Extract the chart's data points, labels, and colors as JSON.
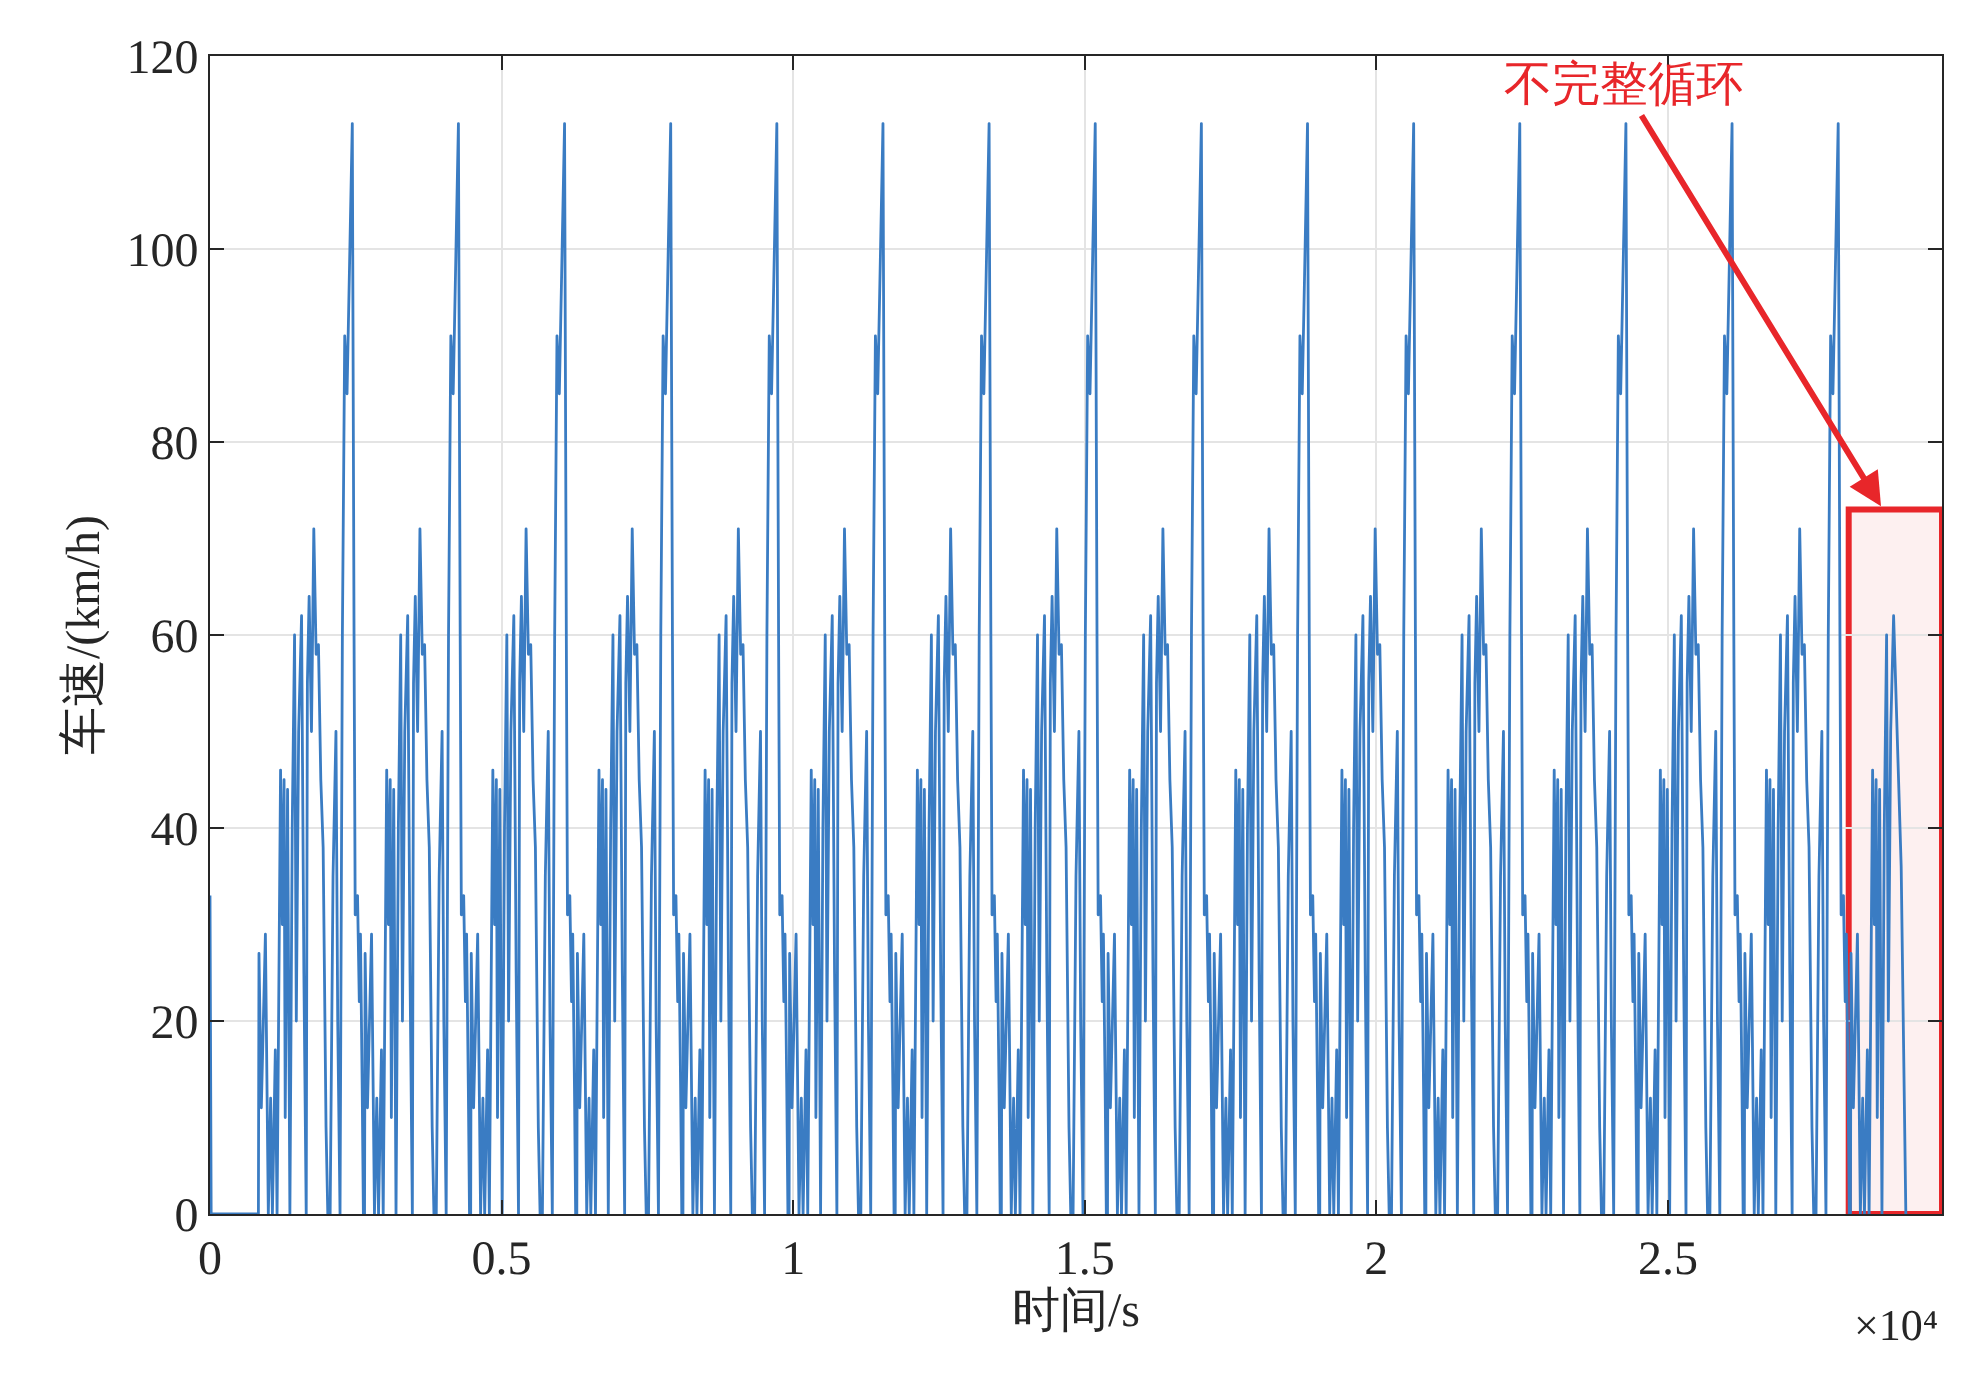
{
  "chart_data": {
    "type": "line",
    "xlabel": "时间/s",
    "ylabel": "车速/(km/h)",
    "xlim": [
      0,
      2.97
    ],
    "ylim": [
      0,
      120
    ],
    "xticks": [
      0,
      0.5,
      1,
      1.5,
      2,
      2.5
    ],
    "yticks": [
      0,
      20,
      40,
      60,
      80,
      100,
      120
    ],
    "grid": true,
    "annotations": [
      "×10⁴",
      {
        "text": "不完整循环",
        "x": 2.869,
        "y": 73
      }
    ],
    "bands": [
      {
        "axis": "x",
        "from": 2.81,
        "to": 2.97,
        "color": "#e8262a"
      }
    ],
    "x": [
      0,
      0.002,
      0.083,
      0.084,
      0.088,
      0.095,
      0.1,
      0.104,
      0.107,
      0.112,
      0.115,
      0.121,
      0.124,
      0.127,
      0.129,
      0.133,
      0.137,
      0.141,
      0.145,
      0.148,
      0.152,
      0.157,
      0.161,
      0.165,
      0.167,
      0.17,
      0.174,
      0.178,
      0.182,
      0.186,
      0.19,
      0.194,
      0.199,
      0.202,
      0.206,
      0.211,
      0.216,
      0.219,
      0.223,
      0.227,
      0.231,
      0.235,
      0.244,
      0.247,
      0.249,
      0.253,
      0.256,
      0.258,
      0.261,
      0.263,
      0.265,
      0.266,
      0.27,
      0.277,
      0.282,
      0.286,
      0.289,
      0.294,
      0.297,
      0.303,
      0.306,
      0.309,
      0.311,
      0.315,
      0.319,
      0.323,
      0.327,
      0.33,
      0.334,
      0.339,
      0.343,
      0.347,
      0.349,
      0.352,
      0.356,
      0.36,
      0.364,
      0.368,
      0.372,
      0.376,
      0.381,
      0.384,
      0.388,
      0.393,
      0.398,
      0.401,
      0.405,
      0.409,
      0.413,
      0.417,
      0.426,
      0.429,
      0.431,
      0.435,
      0.438,
      0.44,
      0.443,
      0.445,
      0.447,
      0.448,
      0.452,
      0.459,
      0.464,
      0.468,
      0.471,
      0.476,
      0.479,
      0.485,
      0.488,
      0.491,
      0.493,
      0.497,
      0.501,
      0.505,
      0.509,
      0.512,
      0.516,
      0.521,
      0.525,
      0.529,
      0.531,
      0.534,
      0.538,
      0.542,
      0.546,
      0.55,
      0.554,
      0.558,
      0.563,
      0.566,
      0.57,
      0.575,
      0.58,
      0.583,
      0.587,
      0.591,
      0.595,
      0.599,
      0.608,
      0.611,
      0.613,
      0.617,
      0.62,
      0.622,
      0.625,
      0.627,
      0.629,
      0.63,
      0.634,
      0.641,
      0.646,
      0.65,
      0.653,
      0.658,
      0.661,
      0.667,
      0.67,
      0.673,
      0.675,
      0.679,
      0.683,
      0.687,
      0.691,
      0.694,
      0.698,
      0.703,
      0.707,
      0.711,
      0.713,
      0.716,
      0.72,
      0.724,
      0.728,
      0.732,
      0.736,
      0.74,
      0.745,
      0.748,
      0.752,
      0.757,
      0.762,
      0.765,
      0.769,
      0.773,
      0.777,
      0.781,
      0.79,
      0.793,
      0.795,
      0.799,
      0.802,
      0.804,
      0.807,
      0.809,
      0.811,
      0.812,
      0.816,
      0.823,
      0.828,
      0.832,
      0.835,
      0.84,
      0.843,
      0.849,
      0.852,
      0.855,
      0.857,
      0.861,
      0.865,
      0.869,
      0.873,
      0.876,
      0.88,
      0.885,
      0.889,
      0.893,
      0.895,
      0.898,
      0.902,
      0.906,
      0.91,
      0.914,
      0.918,
      0.922,
      0.927,
      0.93,
      0.934,
      0.939,
      0.944,
      0.947,
      0.951,
      0.955,
      0.959,
      0.963,
      0.972,
      0.975,
      0.977,
      0.981,
      0.984,
      0.986,
      0.989,
      0.991,
      0.993,
      0.994,
      0.998,
      1.005,
      1.01,
      1.014,
      1.017,
      1.022,
      1.025,
      1.031,
      1.034,
      1.037,
      1.039,
      1.043,
      1.047,
      1.051,
      1.055,
      1.058,
      1.062,
      1.067,
      1.071,
      1.075,
      1.077,
      1.08,
      1.084,
      1.088,
      1.092,
      1.096,
      1.1,
      1.104,
      1.109,
      1.112,
      1.116,
      1.121,
      1.126,
      1.129,
      1.133,
      1.137,
      1.141,
      1.145,
      1.154,
      1.157,
      1.159,
      1.163,
      1.166,
      1.168,
      1.171,
      1.173,
      1.175,
      1.176,
      1.18,
      1.187,
      1.192,
      1.196,
      1.199,
      1.204,
      1.207,
      1.213,
      1.216,
      1.219,
      1.221,
      1.225,
      1.229,
      1.233,
      1.237,
      1.24,
      1.244,
      1.249,
      1.253,
      1.257,
      1.259,
      1.262,
      1.266,
      1.27,
      1.274,
      1.278,
      1.282,
      1.286,
      1.291,
      1.294,
      1.298,
      1.303,
      1.308,
      1.311,
      1.315,
      1.319,
      1.323,
      1.327,
      1.336,
      1.339,
      1.341,
      1.345,
      1.348,
      1.35,
      1.353,
      1.355,
      1.357,
      1.358,
      1.362,
      1.369,
      1.374,
      1.378,
      1.381,
      1.386,
      1.389,
      1.395,
      1.398,
      1.401,
      1.403,
      1.407,
      1.411,
      1.415,
      1.419,
      1.422,
      1.426,
      1.431,
      1.435,
      1.439,
      1.441,
      1.444,
      1.448,
      1.452,
      1.456,
      1.46,
      1.464,
      1.468,
      1.473,
      1.476,
      1.48,
      1.485,
      1.49,
      1.493,
      1.497,
      1.501,
      1.505,
      1.509,
      1.518,
      1.521,
      1.523,
      1.527,
      1.53,
      1.532,
      1.535,
      1.537,
      1.539,
      1.54,
      1.544,
      1.551,
      1.556,
      1.56,
      1.563,
      1.568,
      1.571,
      1.577,
      1.58,
      1.583,
      1.585,
      1.589,
      1.593,
      1.597,
      1.601,
      1.604,
      1.608,
      1.613,
      1.617,
      1.621,
      1.623,
      1.626,
      1.63,
      1.634,
      1.638,
      1.642,
      1.646,
      1.65,
      1.655,
      1.658,
      1.662,
      1.667,
      1.672,
      1.675,
      1.679,
      1.683,
      1.687,
      1.691,
      1.7,
      1.703,
      1.705,
      1.709,
      1.712,
      1.714,
      1.717,
      1.719,
      1.721,
      1.722,
      1.726,
      1.733,
      1.738,
      1.742,
      1.745,
      1.75,
      1.753,
      1.759,
      1.762,
      1.765,
      1.767,
      1.771,
      1.775,
      1.779,
      1.783,
      1.786,
      1.79,
      1.795,
      1.799,
      1.803,
      1.805,
      1.808,
      1.812,
      1.816,
      1.82,
      1.824,
      1.828,
      1.832,
      1.837,
      1.84,
      1.844,
      1.849,
      1.854,
      1.857,
      1.861,
      1.865,
      1.869,
      1.873,
      1.882,
      1.885,
      1.887,
      1.891,
      1.894,
      1.896,
      1.899,
      1.901,
      1.903,
      1.904,
      1.908,
      1.915,
      1.92,
      1.924,
      1.927,
      1.932,
      1.935,
      1.941,
      1.944,
      1.947,
      1.949,
      1.953,
      1.957,
      1.961,
      1.965,
      1.968,
      1.972,
      1.977,
      1.981,
      1.985,
      1.987,
      1.99,
      1.994,
      1.998,
      2.002,
      2.006,
      2.01,
      2.014,
      2.019,
      2.022,
      2.026,
      2.031,
      2.036,
      2.039,
      2.043,
      2.047,
      2.051,
      2.055,
      2.064,
      2.067,
      2.069,
      2.073,
      2.076,
      2.078,
      2.081,
      2.083,
      2.085,
      2.086,
      2.09,
      2.097,
      2.102,
      2.106,
      2.109,
      2.114,
      2.117,
      2.123,
      2.126,
      2.129,
      2.131,
      2.135,
      2.139,
      2.143,
      2.147,
      2.15,
      2.154,
      2.159,
      2.163,
      2.167,
      2.169,
      2.172,
      2.176,
      2.18,
      2.184,
      2.188,
      2.192,
      2.196,
      2.201,
      2.204,
      2.208,
      2.213,
      2.218,
      2.221,
      2.225,
      2.229,
      2.233,
      2.237,
      2.246,
      2.249,
      2.251,
      2.255,
      2.258,
      2.26,
      2.263,
      2.265,
      2.267,
      2.268,
      2.272,
      2.279,
      2.284,
      2.288,
      2.291,
      2.296,
      2.299,
      2.305,
      2.308,
      2.311,
      2.313,
      2.317,
      2.321,
      2.325,
      2.329,
      2.332,
      2.336,
      2.341,
      2.345,
      2.349,
      2.351,
      2.354,
      2.358,
      2.362,
      2.366,
      2.37,
      2.374,
      2.378,
      2.383,
      2.386,
      2.39,
      2.395,
      2.4,
      2.403,
      2.407,
      2.411,
      2.415,
      2.419,
      2.428,
      2.431,
      2.433,
      2.437,
      2.44,
      2.442,
      2.445,
      2.447,
      2.449,
      2.45,
      2.454,
      2.461,
      2.466,
      2.47,
      2.473,
      2.478,
      2.481,
      2.487,
      2.49,
      2.493,
      2.495,
      2.499,
      2.503,
      2.507,
      2.511,
      2.514,
      2.518,
      2.523,
      2.527,
      2.531,
      2.533,
      2.536,
      2.54,
      2.544,
      2.548,
      2.552,
      2.556,
      2.56,
      2.565,
      2.568,
      2.572,
      2.577,
      2.582,
      2.585,
      2.589,
      2.593,
      2.597,
      2.601,
      2.61,
      2.613,
      2.615,
      2.619,
      2.622,
      2.624,
      2.627,
      2.629,
      2.631,
      2.632,
      2.636,
      2.643,
      2.648,
      2.652,
      2.655,
      2.66,
      2.663,
      2.669,
      2.672,
      2.675,
      2.677,
      2.681,
      2.685,
      2.689,
      2.693,
      2.696,
      2.7,
      2.705,
      2.709,
      2.713,
      2.715,
      2.718,
      2.722,
      2.726,
      2.73,
      2.734,
      2.738,
      2.742,
      2.747,
      2.75,
      2.754,
      2.759,
      2.764,
      2.767,
      2.771,
      2.775,
      2.779,
      2.783,
      2.792,
      2.795,
      2.797,
      2.801,
      2.804,
      2.806,
      2.809,
      2.811,
      2.813,
      2.814,
      2.818,
      2.825,
      2.83,
      2.834,
      2.837,
      2.842,
      2.845,
      2.851,
      2.854,
      2.857,
      2.859,
      2.863,
      2.867,
      2.871,
      2.875,
      2.878,
      2.882,
      2.887,
      2.9,
      2.908
    ],
    "series": [
      {
        "color": "#3a7cc3",
        "values": [
          33,
          0,
          0,
          27,
          11,
          29,
          0,
          12,
          0,
          17,
          0,
          46,
          30,
          45,
          10,
          44,
          0,
          40,
          60,
          20,
          50,
          62,
          25,
          0,
          55,
          64,
          50,
          71,
          58,
          59,
          45,
          38,
          9,
          0,
          0,
          35,
          50,
          20,
          0,
          60,
          91,
          85,
          113,
          60,
          31,
          33,
          22,
          29,
          13,
          0,
          0,
          27,
          11,
          29,
          0,
          12,
          0,
          17,
          0,
          46,
          30,
          45,
          10,
          44,
          0,
          40,
          60,
          20,
          50,
          62,
          25,
          0,
          55,
          64,
          50,
          71,
          58,
          59,
          45,
          38,
          9,
          0,
          0,
          35,
          50,
          20,
          0,
          60,
          91,
          85,
          113,
          60,
          31,
          33,
          22,
          29,
          13,
          0,
          0,
          27,
          11,
          29,
          0,
          12,
          0,
          17,
          0,
          46,
          30,
          45,
          10,
          44,
          0,
          40,
          60,
          20,
          50,
          62,
          25,
          0,
          55,
          64,
          50,
          71,
          58,
          59,
          45,
          38,
          9,
          0,
          0,
          35,
          50,
          20,
          0,
          60,
          91,
          85,
          113,
          60,
          31,
          33,
          22,
          29,
          13,
          0,
          0,
          27,
          11,
          29,
          0,
          12,
          0,
          17,
          0,
          46,
          30,
          45,
          10,
          44,
          0,
          40,
          60,
          20,
          50,
          62,
          25,
          0,
          55,
          64,
          50,
          71,
          58,
          59,
          45,
          38,
          9,
          0,
          0,
          35,
          50,
          20,
          0,
          60,
          91,
          85,
          113,
          60,
          31,
          33,
          22,
          29,
          13,
          0,
          0,
          27,
          11,
          29,
          0,
          12,
          0,
          17,
          0,
          46,
          30,
          45,
          10,
          44,
          0,
          40,
          60,
          20,
          50,
          62,
          25,
          0,
          55,
          64,
          50,
          71,
          58,
          59,
          45,
          38,
          9,
          0,
          0,
          35,
          50,
          20,
          0,
          60,
          91,
          85,
          113,
          60,
          31,
          33,
          22,
          29,
          13,
          0,
          0,
          27,
          11,
          29,
          0,
          12,
          0,
          17,
          0,
          46,
          30,
          45,
          10,
          44,
          0,
          40,
          60,
          20,
          50,
          62,
          25,
          0,
          55,
          64,
          50,
          71,
          58,
          59,
          45,
          38,
          9,
          0,
          0,
          35,
          50,
          20,
          0,
          60,
          91,
          85,
          113,
          60,
          31,
          33,
          22,
          29,
          13,
          0,
          0,
          27,
          11,
          29,
          0,
          12,
          0,
          17,
          0,
          46,
          30,
          45,
          10,
          44,
          0,
          40,
          60,
          20,
          50,
          62,
          25,
          0,
          55,
          64,
          50,
          71,
          58,
          59,
          45,
          38,
          9,
          0,
          0,
          35,
          50,
          20,
          0,
          60,
          91,
          85,
          113,
          60,
          31,
          33,
          22,
          29,
          13,
          0,
          0,
          27,
          11,
          29,
          0,
          12,
          0,
          17,
          0,
          46,
          30,
          45,
          10,
          44,
          0,
          40,
          60,
          20,
          50,
          62,
          25,
          0,
          55,
          64,
          50,
          71,
          58,
          59,
          45,
          38,
          9,
          0,
          0,
          35,
          50,
          20,
          0,
          60,
          91,
          85,
          113,
          60,
          31,
          33,
          22,
          29,
          13,
          0,
          0,
          27,
          11,
          29,
          0,
          12,
          0,
          17,
          0,
          46,
          30,
          45,
          10,
          44,
          0,
          40,
          60,
          20,
          50,
          62,
          25,
          0,
          55,
          64,
          50,
          71,
          58,
          59,
          45,
          38,
          9,
          0,
          0,
          35,
          50,
          20,
          0,
          60,
          91,
          85,
          113,
          60,
          31,
          33,
          22,
          29,
          13,
          0,
          0,
          27,
          11,
          29,
          0,
          12,
          0,
          17,
          0,
          46,
          30,
          45,
          10,
          44,
          0,
          40,
          60,
          20,
          50,
          62,
          25,
          0,
          55,
          64,
          50,
          71,
          58,
          59,
          45,
          38,
          9,
          0,
          0,
          35,
          50,
          20,
          0,
          60,
          91,
          85,
          113,
          60,
          31,
          33,
          22,
          29,
          13,
          0,
          0,
          27,
          11,
          29,
          0,
          12,
          0,
          17,
          0,
          46,
          30,
          45,
          10,
          44,
          0,
          40,
          60,
          20,
          50,
          62,
          25,
          0,
          55,
          64,
          50,
          71,
          58,
          59,
          45,
          38,
          9,
          0,
          0,
          35,
          50,
          20,
          0,
          60,
          91,
          85,
          113,
          60,
          31,
          33,
          22,
          29,
          13,
          0,
          0,
          27,
          11,
          29,
          0,
          12,
          0,
          17,
          0,
          46,
          30,
          45,
          10,
          44,
          0,
          40,
          60,
          20,
          50,
          62,
          25,
          0,
          55,
          64,
          50,
          71,
          58,
          59,
          45,
          38,
          9,
          0,
          0,
          35,
          50,
          20,
          0,
          60,
          91,
          85,
          113,
          60,
          31,
          33,
          22,
          29,
          13,
          0,
          0,
          27,
          11,
          29,
          0,
          12,
          0,
          17,
          0,
          46,
          30,
          45,
          10,
          44,
          0,
          40,
          60,
          20,
          50,
          62,
          25,
          0,
          55,
          64,
          50,
          71,
          58,
          59,
          45,
          38,
          9,
          0,
          0,
          35,
          50,
          20,
          0,
          60,
          91,
          85,
          113,
          60,
          31,
          33,
          22,
          29,
          13,
          0,
          0,
          27,
          11,
          29,
          0,
          12,
          0,
          17,
          0,
          46,
          30,
          45,
          10,
          44,
          0,
          40,
          60,
          20,
          50,
          62,
          25,
          0,
          55,
          64,
          50,
          71,
          58,
          59,
          45,
          38,
          9,
          0,
          0,
          35,
          50,
          20,
          0,
          60,
          91,
          85,
          113,
          60,
          31,
          33,
          22,
          29,
          13,
          0,
          0,
          27,
          11,
          29,
          0,
          12,
          0,
          17,
          0,
          46,
          30,
          45,
          10,
          44,
          0,
          40,
          60,
          20,
          50,
          62,
          25,
          0,
          55,
          64,
          50,
          71,
          58,
          59,
          45,
          38,
          9,
          0,
          0,
          35,
          50,
          20,
          0,
          60,
          91,
          85,
          113,
          60,
          31,
          33,
          22,
          29,
          13,
          0,
          0,
          27,
          11,
          29,
          0,
          12,
          0,
          17,
          0,
          46,
          30,
          45,
          10,
          44,
          0,
          40,
          60,
          20,
          50,
          62,
          36,
          0
        ]
      }
    ]
  }
}
